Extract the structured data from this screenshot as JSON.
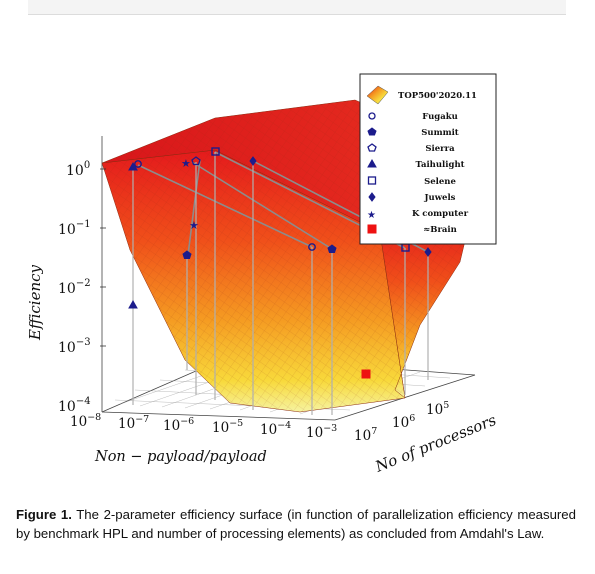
{
  "caption": {
    "label": "Figure 1.",
    "text": "The 2-parameter efficiency surface (in function of parallelization efficiency measured by benchmark HPL and number of processing elements) as concluded from Amdahl's Law."
  },
  "chart_data": {
    "type": "surface",
    "title": "",
    "zlabel": "Efficiency",
    "xlabel": "Non − payload/payload",
    "ylabel": "No of processors",
    "z_scale": "log",
    "z_ticks": [
      "10^0",
      "10^-1",
      "10^-2",
      "10^-3",
      "10^-4"
    ],
    "x_ticks": [
      "10^-8",
      "10^-7",
      "10^-6",
      "10^-5",
      "10^-4",
      "10^-3"
    ],
    "y_ticks": [
      "10^7",
      "10^6",
      "10^5"
    ],
    "legend": {
      "placement": "top-right",
      "surface_entry": "TOP500'2020.11",
      "entries": [
        {
          "name": "Fugaku",
          "marker": "circle-open"
        },
        {
          "name": "Summit",
          "marker": "pentagon-filled"
        },
        {
          "name": "Sierra",
          "marker": "pentagon-open"
        },
        {
          "name": "Taihulight",
          "marker": "triangle-filled"
        },
        {
          "name": "Selene",
          "marker": "square-open"
        },
        {
          "name": "Juwels",
          "marker": "diamond-filled"
        },
        {
          "name": "K computer",
          "marker": "star-filled"
        },
        {
          "name": "≈Brain",
          "marker": "square-red"
        }
      ]
    },
    "marker_color": "#1c1c8c",
    "brain_color": "#ee1111",
    "surface_colors": [
      "#e41a1c",
      "#f57c16",
      "#f8d93b",
      "#f4f497"
    ]
  }
}
